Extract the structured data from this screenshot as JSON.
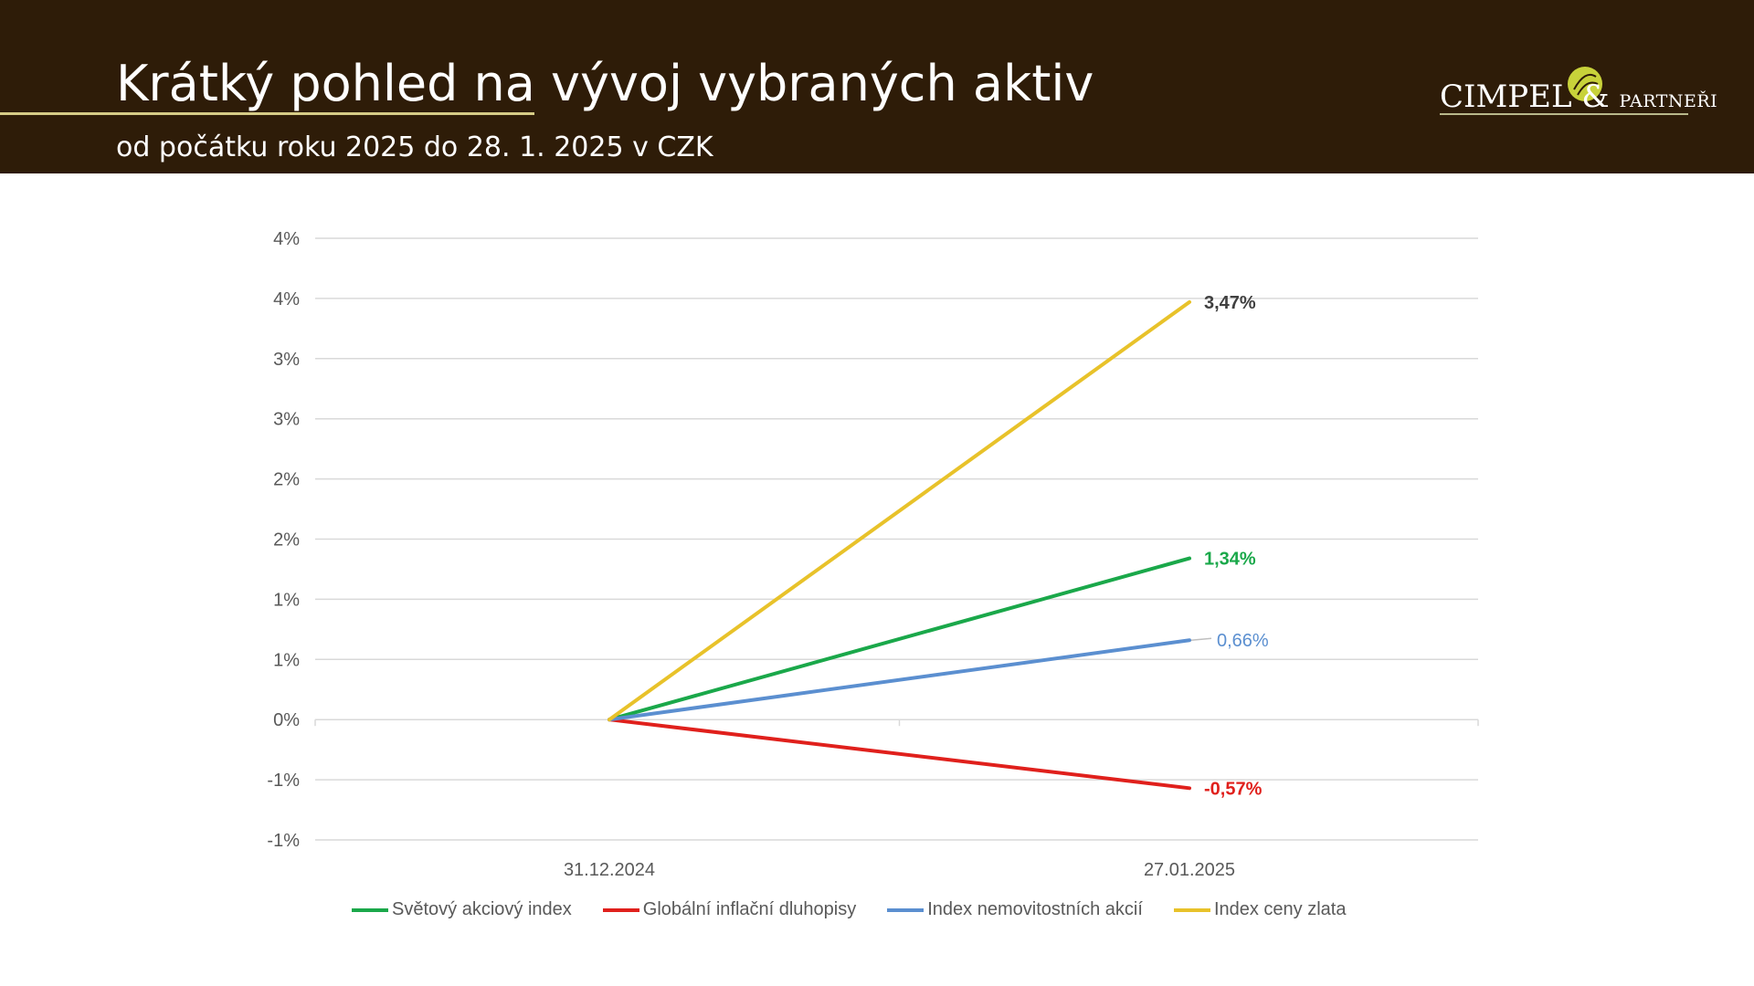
{
  "header": {
    "title": "Krátký pohled na vývoj vybraných aktiv",
    "subtitle": "od počátku roku 2025 do 28. 1. 2025 v CZK"
  },
  "logo": {
    "name": "CIMPEL",
    "amp": "&",
    "partners": "PARTNEŘI",
    "leaf_color": "#c8d23a"
  },
  "chart_data": {
    "type": "line",
    "categories": [
      "31.12.2024",
      "27.01.2025"
    ],
    "ylim": [
      -1.0,
      4.0
    ],
    "y_ticks": [
      {
        "value": 4.0,
        "label": "4%"
      },
      {
        "value": 3.5,
        "label": "4%"
      },
      {
        "value": 3.0,
        "label": "3%"
      },
      {
        "value": 2.5,
        "label": "3%"
      },
      {
        "value": 2.0,
        "label": "2%"
      },
      {
        "value": 1.5,
        "label": "2%"
      },
      {
        "value": 1.0,
        "label": "1%"
      },
      {
        "value": 0.5,
        "label": "1%"
      },
      {
        "value": 0.0,
        "label": "0%"
      },
      {
        "value": -0.5,
        "label": "-1%"
      },
      {
        "value": -1.0,
        "label": "-1%"
      }
    ],
    "grid": true,
    "legend_position": "bottom",
    "series": [
      {
        "name": "Světový akciový index",
        "color": "#1aa84a",
        "values": [
          0,
          1.34
        ],
        "end_label": "1,34%",
        "label_color": "#1aa84a"
      },
      {
        "name": "Globální inflační dluhopisy",
        "color": "#e0201c",
        "values": [
          0,
          -0.57
        ],
        "end_label": "-0,57%",
        "label_color": "#e0201c"
      },
      {
        "name": "Index nemovitostních akcií",
        "color": "#5b8fd0",
        "values": [
          0,
          0.66
        ],
        "end_label": "0,66%",
        "label_color": "#5b8fd0"
      },
      {
        "name": "Index ceny zlata",
        "color": "#e8c22a",
        "values": [
          0,
          3.47
        ],
        "end_label": "3,47%",
        "label_color": "#404040"
      }
    ]
  }
}
